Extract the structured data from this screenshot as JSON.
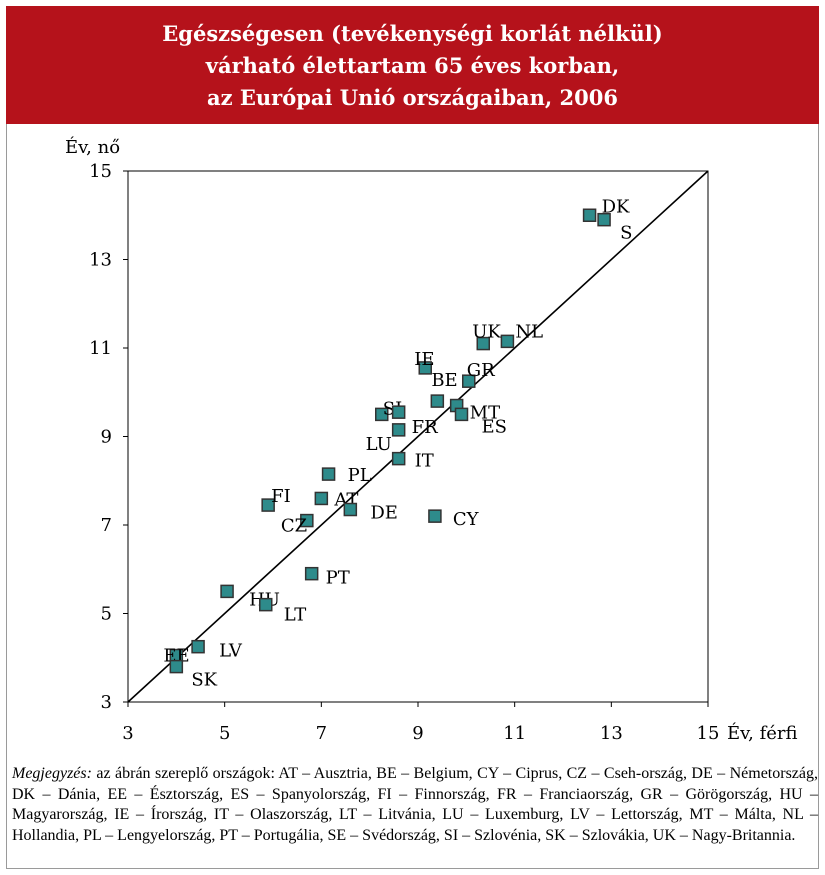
{
  "title": {
    "line1": "Egészségesen (tevékenységi korlát nélkül)",
    "line2": "várható élettartam 65 éves korban,",
    "line3": "az Európai Unió országaiban, 2006"
  },
  "note": {
    "label": "Megjegyzés:",
    "text": "az ábrán szereplő országok: AT – Ausztria, BE – Belgium, CY – Ciprus, CZ – Cseh-ország, DE – Németország, DK – Dánia, EE – Észtország, ES – Spanyolország, FI – Finnország, FR – Franciaország, GR – Görögország, HU – Magyarország, IE – Írország, IT – Olaszország, LT – Litvánia, LU – Luxemburg, LV – Lettország, MT – Málta, NL – Hollandia, PL – Lengyelország, PT – Portugália, SE – Svédország, SI – Szlovénia, SK – Szlovákia, UK – Nagy-Britannia."
  },
  "colors": {
    "title_band": "#b5121b",
    "marker_fill": "#2e8b8b",
    "marker_stroke": "#333333"
  },
  "chart_data": {
    "type": "scatter",
    "xlabel": "Év, férfi",
    "ylabel": "Év, nő",
    "xlim": [
      3,
      15
    ],
    "ylim": [
      3,
      15
    ],
    "xticks": [
      3,
      5,
      7,
      9,
      11,
      13,
      15
    ],
    "yticks": [
      3,
      5,
      7,
      9,
      11,
      13,
      15
    ],
    "grid": false,
    "reference_line": "y = x",
    "points": [
      {
        "label": "DK",
        "x": 12.55,
        "y": 14.0
      },
      {
        "label": "S",
        "x": 12.85,
        "y": 13.9
      },
      {
        "label": "NL",
        "x": 10.85,
        "y": 11.15
      },
      {
        "label": "UK",
        "x": 10.35,
        "y": 11.1
      },
      {
        "label": "IE",
        "x": 9.15,
        "y": 10.55
      },
      {
        "label": "GR",
        "x": 10.05,
        "y": 10.25
      },
      {
        "label": "BE",
        "x": 9.4,
        "y": 9.8
      },
      {
        "label": "MT",
        "x": 9.8,
        "y": 9.7
      },
      {
        "label": "ES",
        "x": 9.9,
        "y": 9.5
      },
      {
        "label": "SI",
        "x": 8.25,
        "y": 9.5
      },
      {
        "label": "FR",
        "x": 8.6,
        "y": 9.55
      },
      {
        "label": "LU",
        "x": 8.6,
        "y": 9.15
      },
      {
        "label": "IT",
        "x": 8.6,
        "y": 8.5
      },
      {
        "label": "PL",
        "x": 7.15,
        "y": 8.15
      },
      {
        "label": "FI",
        "x": 5.9,
        "y": 7.45
      },
      {
        "label": "AT",
        "x": 7.0,
        "y": 7.6
      },
      {
        "label": "CZ",
        "x": 6.7,
        "y": 7.1
      },
      {
        "label": "DE",
        "x": 7.6,
        "y": 7.35
      },
      {
        "label": "CY",
        "x": 9.35,
        "y": 7.2
      },
      {
        "label": "PT",
        "x": 6.8,
        "y": 5.9
      },
      {
        "label": "HU",
        "x": 5.05,
        "y": 5.5
      },
      {
        "label": "LT",
        "x": 5.85,
        "y": 5.2
      },
      {
        "label": "LV",
        "x": 4.45,
        "y": 4.25
      },
      {
        "label": "EE",
        "x": 4.0,
        "y": 4.05
      },
      {
        "label": "SK",
        "x": 4.0,
        "y": 3.8
      }
    ]
  }
}
